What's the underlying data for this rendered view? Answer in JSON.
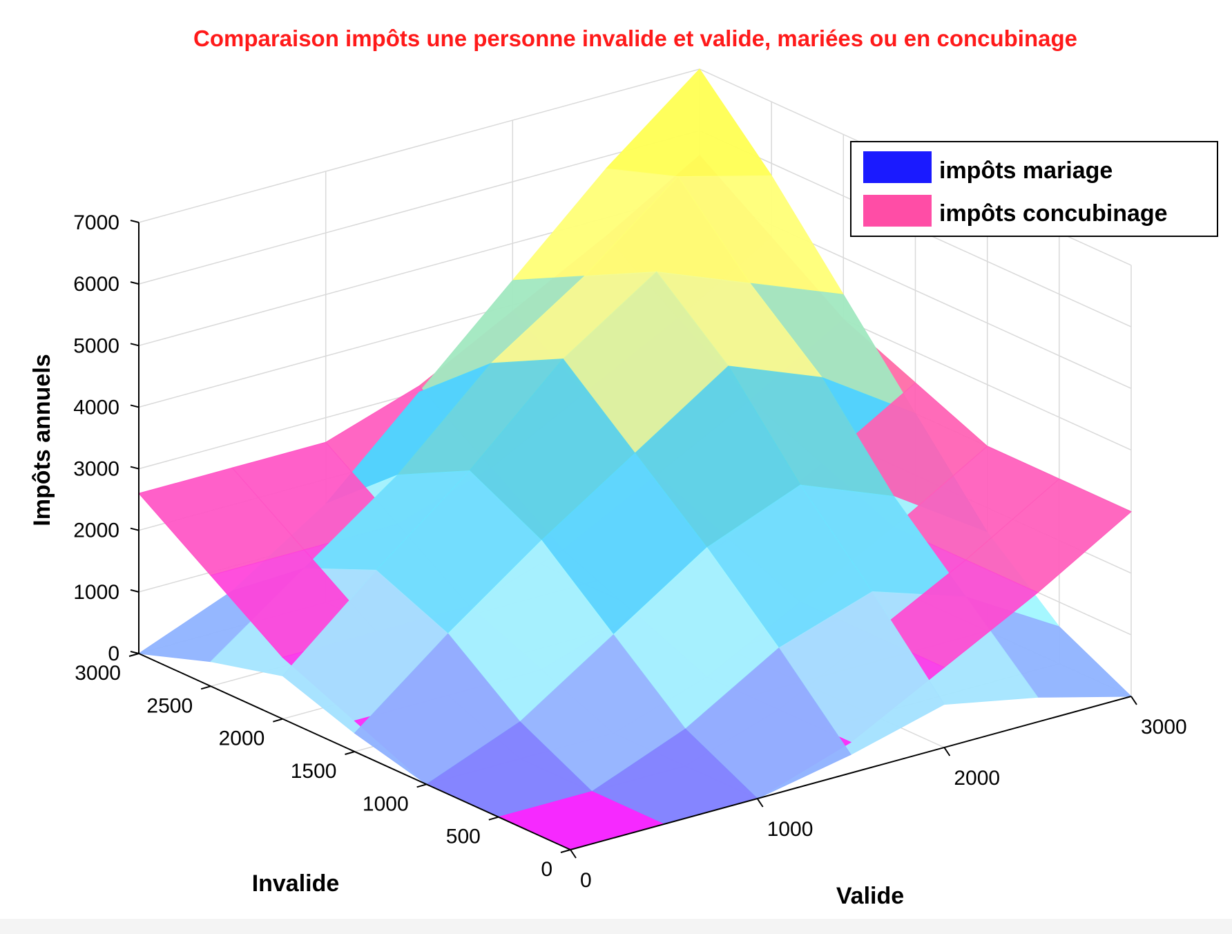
{
  "chart_data": {
    "type": "surface3d",
    "title": "Comparaison impôts une personne invalide et valide, mariées ou en concubinage",
    "xlabel": "Valide",
    "ylabel": "Invalide",
    "zlabel": "Impôts annuels",
    "xlim": [
      0,
      3000
    ],
    "ylim": [
      0,
      3000
    ],
    "zlim": [
      0,
      7000
    ],
    "x_ticks": [
      0,
      1000,
      2000,
      3000
    ],
    "y_ticks": [
      0,
      500,
      1000,
      1500,
      2000,
      2500,
      3000
    ],
    "z_ticks": [
      0,
      1000,
      2000,
      3000,
      4000,
      5000,
      6000,
      7000
    ],
    "grid": true,
    "legend_position": "top-right",
    "colors": {
      "title": "#ff1a1a",
      "mariage": "#1a1aff",
      "concubinage": "#ff4da6",
      "axes": "#000000",
      "grid": "#d9d9d9"
    },
    "series": [
      {
        "name": "impôts mariage",
        "x": [
          0,
          500,
          1000,
          1500,
          2000,
          2500,
          3000
        ],
        "y": [
          0,
          500,
          1000,
          1500,
          2000,
          2500,
          3000
        ],
        "z": [
          [
            0,
            0,
            0,
            300,
            700,
            400,
            0
          ],
          [
            0,
            0,
            600,
            1500,
            2000,
            1500,
            600
          ],
          [
            0,
            600,
            1600,
            2600,
            3200,
            2600,
            1600
          ],
          [
            300,
            1500,
            2600,
            3600,
            4600,
            4000,
            3000
          ],
          [
            700,
            2000,
            3200,
            4600,
            5600,
            5000,
            4400
          ],
          [
            400,
            1500,
            2600,
            4000,
            5000,
            6200,
            5800
          ],
          [
            0,
            600,
            1600,
            3000,
            4400,
            5800,
            7000
          ]
        ]
      },
      {
        "name": "impôts concubinage",
        "x": [
          0,
          500,
          1000,
          1500,
          2000,
          2500,
          3000
        ],
        "y": [
          0,
          500,
          1000,
          1500,
          2000,
          2500,
          3000
        ],
        "z": [
          [
            0,
            0,
            0,
            500,
            1300,
            2100,
            3000
          ],
          [
            0,
            0,
            0,
            500,
            1300,
            2100,
            3000
          ],
          [
            0,
            0,
            0,
            500,
            1300,
            2100,
            3000
          ],
          [
            500,
            500,
            500,
            1000,
            1800,
            2600,
            3500
          ],
          [
            1000,
            1000,
            1000,
            1500,
            2300,
            3100,
            4000
          ],
          [
            1800,
            1800,
            1800,
            2300,
            3100,
            3900,
            4800
          ],
          [
            2600,
            2600,
            2600,
            3100,
            3900,
            4700,
            5600
          ]
        ]
      }
    ]
  }
}
